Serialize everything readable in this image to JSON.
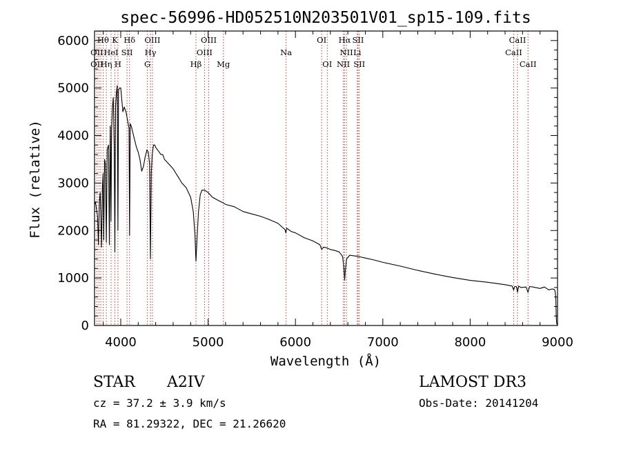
{
  "chart_data": {
    "type": "line",
    "title": "spec-56996-HD052510N203501V01_sp15-109.fits",
    "xlabel": "Wavelength (Å)",
    "ylabel": "Flux (relative)",
    "xlim": [
      3700,
      9000
    ],
    "ylim": [
      0,
      6200
    ],
    "xticks": [
      4000,
      5000,
      6000,
      7000,
      8000,
      9000
    ],
    "yticks": [
      0,
      1000,
      2000,
      3000,
      4000,
      5000,
      6000
    ],
    "grid": false,
    "series": [
      {
        "name": "flux",
        "x": [
          3700,
          3710,
          3720,
          3735,
          3745,
          3755,
          3765,
          3770,
          3780,
          3790,
          3798,
          3805,
          3815,
          3825,
          3835,
          3845,
          3860,
          3870,
          3880,
          3889,
          3895,
          3905,
          3915,
          3925,
          3933,
          3940,
          3950,
          3960,
          3968,
          3975,
          3985,
          4000,
          4010,
          4025,
          4040,
          4060,
          4080,
          4095,
          4101,
          4108,
          4120,
          4140,
          4160,
          4180,
          4200,
          4220,
          4240,
          4260,
          4280,
          4300,
          4315,
          4330,
          4340,
          4350,
          4360,
          4375,
          4390,
          4400,
          4420,
          4440,
          4460,
          4480,
          4500,
          4550,
          4600,
          4650,
          4700,
          4750,
          4800,
          4830,
          4850,
          4858,
          4861,
          4865,
          4875,
          4890,
          4910,
          4930,
          4960,
          5000,
          5050,
          5100,
          5150,
          5175,
          5200,
          5300,
          5400,
          5500,
          5600,
          5700,
          5800,
          5880,
          5890,
          5900,
          5950,
          6000,
          6100,
          6200,
          6280,
          6300,
          6320,
          6350,
          6400,
          6450,
          6500,
          6540,
          6555,
          6563,
          6570,
          6585,
          6620,
          6660,
          6700,
          6800,
          6900,
          7000,
          7200,
          7400,
          7600,
          7800,
          8000,
          8200,
          8400,
          8480,
          8498,
          8510,
          8530,
          8542,
          8555,
          8580,
          8640,
          8662,
          8680,
          8720,
          8800,
          8850,
          8900,
          8940,
          8960,
          8970,
          8980,
          8985,
          8990,
          8995,
          9000
        ],
        "values": [
          2550,
          2600,
          2480,
          2300,
          1700,
          2600,
          2800,
          2400,
          1650,
          2900,
          3200,
          1800,
          3500,
          3400,
          1750,
          3700,
          3800,
          1700,
          4200,
          2200,
          4100,
          4600,
          4800,
          3800,
          1550,
          4600,
          4900,
          5050,
          2000,
          4950,
          5000,
          5000,
          4800,
          4500,
          4600,
          4500,
          4300,
          4150,
          1900,
          4250,
          4200,
          4050,
          3900,
          3750,
          3650,
          3500,
          3250,
          3350,
          3550,
          3700,
          3650,
          3400,
          1400,
          3200,
          3600,
          3800,
          3800,
          3750,
          3700,
          3650,
          3600,
          3600,
          3500,
          3400,
          3300,
          3150,
          3000,
          2900,
          2700,
          2400,
          1900,
          1500,
          1350,
          1500,
          1900,
          2400,
          2750,
          2850,
          2850,
          2800,
          2700,
          2650,
          2600,
          2580,
          2550,
          2500,
          2400,
          2350,
          2300,
          2230,
          2150,
          2020,
          1950,
          2050,
          1980,
          1950,
          1850,
          1780,
          1700,
          1600,
          1650,
          1640,
          1600,
          1580,
          1550,
          1450,
          1200,
          950,
          1150,
          1400,
          1480,
          1470,
          1460,
          1420,
          1380,
          1330,
          1250,
          1160,
          1080,
          1010,
          950,
          910,
          860,
          830,
          750,
          820,
          820,
          700,
          830,
          800,
          810,
          700,
          820,
          810,
          780,
          810,
          750,
          770,
          760,
          740,
          600,
          200,
          50,
          20,
          10
        ]
      }
    ],
    "line_labels": [
      {
        "name": "Hθ",
        "x": 3798,
        "row": 1
      },
      {
        "name": "K",
        "x": 3933,
        "row": 1
      },
      {
        "name": "Hδ",
        "x": 4101,
        "row": 1
      },
      {
        "name": "OIII",
        "x": 4363,
        "row": 1
      },
      {
        "name": "OIII",
        "x": 5007,
        "row": 1
      },
      {
        "name": "OI",
        "x": 6300,
        "row": 1
      },
      {
        "name": "Hα",
        "x": 6563,
        "row": 1
      },
      {
        "name": "SII",
        "x": 6717,
        "row": 1
      },
      {
        "name": "CaII",
        "x": 8542,
        "row": 1
      },
      {
        "name": "OII",
        "x": 3727,
        "row": 2
      },
      {
        "name": "HeI",
        "x": 3889,
        "row": 2
      },
      {
        "name": "SII",
        "x": 4072,
        "row": 2
      },
      {
        "name": "Hγ",
        "x": 4340,
        "row": 2
      },
      {
        "name": "OIII",
        "x": 4959,
        "row": 2
      },
      {
        "name": "Na",
        "x": 5893,
        "row": 2
      },
      {
        "name": "NII",
        "x": 6584,
        "row": 2
      },
      {
        "name": "Li",
        "x": 6708,
        "row": 2
      },
      {
        "name": "CaII",
        "x": 8498,
        "row": 2
      },
      {
        "name": "OII",
        "x": 3727,
        "row": 3
      },
      {
        "name": "Hη",
        "x": 3835,
        "row": 3
      },
      {
        "name": "H",
        "x": 3968,
        "row": 3
      },
      {
        "name": "G",
        "x": 4305,
        "row": 3
      },
      {
        "name": "Hβ",
        "x": 4861,
        "row": 3
      },
      {
        "name": "Mg",
        "x": 5175,
        "row": 3
      },
      {
        "name": "OI",
        "x": 6364,
        "row": 3
      },
      {
        "name": "NII",
        "x": 6548,
        "row": 3
      },
      {
        "name": "SII",
        "x": 6731,
        "row": 3
      },
      {
        "name": "CaII",
        "x": 8662,
        "row": 3
      }
    ],
    "marker_lines": [
      3727,
      3750,
      3771,
      3798,
      3835,
      3889,
      3933,
      3968,
      4072,
      4101,
      4305,
      4340,
      4363,
      4861,
      4959,
      5007,
      5175,
      5893,
      6300,
      6364,
      6548,
      6563,
      6584,
      6708,
      6717,
      6731,
      8498,
      8542,
      8662
    ]
  },
  "info": {
    "object_class": "STAR",
    "subclass": "A2IV",
    "survey": "LAMOST DR3",
    "cz": "cz = 37.2 ± 3.9 km/s",
    "obs_date": "Obs-Date: 20141204",
    "coords": "RA =  81.29322, DEC =  21.26620"
  },
  "colors": {
    "axis": "#000000",
    "spectrum": "#000000",
    "marker_line": "#b22222",
    "background": "#ffffff"
  }
}
